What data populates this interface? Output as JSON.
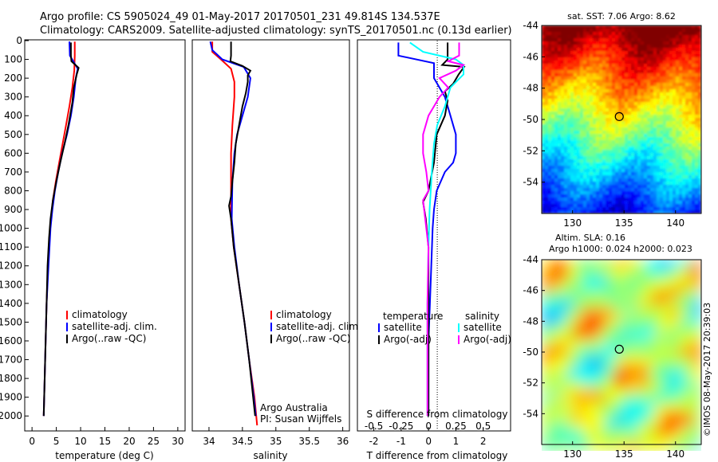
{
  "header": {
    "line1": "Argo profile: CS 5905024_49 01-May-2017 20170501_231 49.814S 134.537E",
    "line2": "Climatology: CARS2009. Satellite-adjusted climatology: synTS_20170501.nc (0.13d earlier)"
  },
  "colors": {
    "climatology": "#ff0000",
    "satellite": "#0000ff",
    "argo": "#000000",
    "s_satellite": "#00ffff",
    "s_argo": "#ff00ff"
  },
  "chart_data": [
    {
      "type": "line",
      "id": "temperature-profile",
      "xlabel": "temperature (deg C)",
      "xlim": [
        -1.5,
        31.5
      ],
      "xticks": [
        0,
        5,
        10,
        15,
        20,
        25,
        30
      ],
      "ylim": [
        0,
        2050
      ],
      "yticks": [
        0,
        100,
        200,
        300,
        400,
        500,
        600,
        700,
        800,
        900,
        1000,
        1100,
        1200,
        1300,
        1400,
        1500,
        1600,
        1700,
        1800,
        1900,
        2000
      ],
      "y_reversed": true,
      "legend": [
        "climatology",
        "satellite-adj. clim.",
        "Argo(..raw -QC)"
      ],
      "series": [
        {
          "name": "climatology",
          "color_key": "climatology",
          "points": [
            [
              8.8,
              5
            ],
            [
              8.8,
              80
            ],
            [
              8.7,
              160
            ],
            [
              8.3,
              250
            ],
            [
              7.7,
              350
            ],
            [
              7.0,
              450
            ],
            [
              6.3,
              550
            ],
            [
              5.6,
              650
            ],
            [
              4.9,
              750
            ],
            [
              4.3,
              850
            ],
            [
              3.9,
              950
            ],
            [
              3.6,
              1050
            ],
            [
              3.3,
              1200
            ],
            [
              3.0,
              1400
            ],
            [
              2.8,
              1600
            ],
            [
              2.6,
              1800
            ],
            [
              2.4,
              2000
            ]
          ]
        },
        {
          "name": "satellite-adj. clim.",
          "color_key": "satellite",
          "points": [
            [
              7.7,
              5
            ],
            [
              7.8,
              80
            ],
            [
              9.4,
              150
            ],
            [
              9.0,
              200
            ],
            [
              8.6,
              300
            ],
            [
              8.0,
              400
            ],
            [
              7.2,
              500
            ],
            [
              6.2,
              600
            ],
            [
              5.4,
              700
            ],
            [
              4.7,
              800
            ],
            [
              4.2,
              900
            ],
            [
              3.8,
              1000
            ],
            [
              3.4,
              1200
            ],
            [
              3.0,
              1400
            ],
            [
              2.8,
              1600
            ],
            [
              2.6,
              1800
            ],
            [
              2.4,
              2000
            ]
          ]
        },
        {
          "name": "Argo(..raw -QC)",
          "color_key": "argo",
          "points": [
            [
              8.0,
              10
            ],
            [
              8.0,
              80
            ],
            [
              8.1,
              110
            ],
            [
              9.6,
              145
            ],
            [
              9.2,
              180
            ],
            [
              8.6,
              250
            ],
            [
              8.3,
              330
            ],
            [
              8.1,
              360
            ],
            [
              7.5,
              450
            ],
            [
              6.7,
              550
            ],
            [
              5.8,
              650
            ],
            [
              5.0,
              750
            ],
            [
              4.3,
              850
            ],
            [
              3.8,
              950
            ],
            [
              3.5,
              1050
            ],
            [
              3.2,
              1200
            ],
            [
              3.0,
              1400
            ],
            [
              2.8,
              1600
            ],
            [
              2.6,
              1800
            ],
            [
              2.4,
              2000
            ]
          ]
        }
      ]
    },
    {
      "type": "line",
      "id": "salinity-profile",
      "xlabel": "salinity",
      "xlim": [
        33.75,
        36.1
      ],
      "xticks": [
        34,
        34.5,
        35,
        35.5,
        36
      ],
      "ylim": [
        0,
        2050
      ],
      "y_reversed": true,
      "legend": [
        "climatology",
        "satellite-adj. clim.",
        "Argo(..raw -QC)"
      ],
      "annotation": [
        "Argo Australia",
        "PI: Susan Wijffels"
      ],
      "series": [
        {
          "name": "climatology",
          "color_key": "climatology",
          "points": [
            [
              34.05,
              5
            ],
            [
              34.05,
              60
            ],
            [
              34.18,
              100
            ],
            [
              34.33,
              150
            ],
            [
              34.38,
              220
            ],
            [
              34.38,
              300
            ],
            [
              34.35,
              450
            ],
            [
              34.33,
              600
            ],
            [
              34.33,
              800
            ],
            [
              34.33,
              950
            ],
            [
              34.37,
              1100
            ],
            [
              34.45,
              1300
            ],
            [
              34.53,
              1500
            ],
            [
              34.6,
              1700
            ],
            [
              34.68,
              1900
            ],
            [
              34.72,
              2050
            ]
          ]
        },
        {
          "name": "satellite-adj. clim.",
          "color_key": "satellite",
          "points": [
            [
              34.02,
              5
            ],
            [
              34.05,
              50
            ],
            [
              34.2,
              100
            ],
            [
              34.52,
              140
            ],
            [
              34.62,
              200
            ],
            [
              34.58,
              300
            ],
            [
              34.5,
              400
            ],
            [
              34.42,
              500
            ],
            [
              34.38,
              600
            ],
            [
              34.35,
              750
            ],
            [
              34.34,
              950
            ],
            [
              34.38,
              1100
            ],
            [
              34.45,
              1300
            ],
            [
              34.53,
              1500
            ],
            [
              34.6,
              1700
            ],
            [
              34.67,
              1900
            ],
            [
              34.7,
              2000
            ]
          ]
        },
        {
          "name": "Argo(..raw -QC)",
          "color_key": "argo",
          "points": [
            [
              34.33,
              5
            ],
            [
              34.33,
              80
            ],
            [
              34.32,
              110
            ],
            [
              34.5,
              135
            ],
            [
              34.62,
              160
            ],
            [
              34.58,
              185
            ],
            [
              34.58,
              220
            ],
            [
              34.55,
              280
            ],
            [
              34.5,
              350
            ],
            [
              34.45,
              450
            ],
            [
              34.4,
              550
            ],
            [
              34.38,
              650
            ],
            [
              34.35,
              750
            ],
            [
              34.33,
              830
            ],
            [
              34.3,
              880
            ],
            [
              34.33,
              950
            ],
            [
              34.37,
              1100
            ],
            [
              34.45,
              1300
            ],
            [
              34.53,
              1500
            ],
            [
              34.6,
              1700
            ],
            [
              34.66,
              1900
            ],
            [
              34.69,
              2000
            ]
          ]
        }
      ]
    },
    {
      "type": "line",
      "id": "difference-profile",
      "xlabel": "T difference from climatology",
      "top_label": "S difference from climatology",
      "xlim": [
        -2.6,
        3.0
      ],
      "xticks": [
        -2,
        -1,
        0,
        1,
        2
      ],
      "s_ticks": [
        -0.5,
        -0.25,
        0,
        0.25,
        0.5
      ],
      "s_tick_labels": [
        "-0.5",
        "-0.25",
        "0",
        "0.25",
        "0.5"
      ],
      "s_scale": 4,
      "ylim": [
        0,
        2050
      ],
      "y_reversed": true,
      "legend_groups": [
        {
          "title": "temperature",
          "items": [
            "satellite",
            "Argo(-adj)"
          ]
        },
        {
          "title": "salinity",
          "items": [
            "satellite",
            "Argo(-adj)"
          ]
        }
      ],
      "series": [
        {
          "name": "satellite",
          "group": "temperature",
          "color_key": "satellite",
          "points": [
            [
              -1.1,
              10
            ],
            [
              -1.1,
              80
            ],
            [
              0.2,
              120
            ],
            [
              0.2,
              200
            ],
            [
              0.6,
              300
            ],
            [
              0.8,
              400
            ],
            [
              1.0,
              500
            ],
            [
              1.0,
              600
            ],
            [
              0.9,
              650
            ],
            [
              0.6,
              700
            ],
            [
              0.3,
              800
            ],
            [
              0.2,
              900
            ],
            [
              0.15,
              1000
            ],
            [
              0.1,
              1200
            ],
            [
              0.05,
              1400
            ],
            [
              0.0,
              1600
            ],
            [
              0.0,
              1800
            ],
            [
              0.0,
              2000
            ]
          ]
        },
        {
          "name": "Argo(-adj)",
          "group": "temperature",
          "color_key": "argo",
          "points": [
            [
              0.7,
              10
            ],
            [
              0.7,
              100
            ],
            [
              0.5,
              130
            ],
            [
              1.3,
              140
            ],
            [
              1.1,
              180
            ],
            [
              0.9,
              230
            ],
            [
              0.6,
              270
            ],
            [
              0.7,
              320
            ],
            [
              0.6,
              400
            ],
            [
              0.3,
              500
            ],
            [
              0.2,
              650
            ],
            [
              0.0,
              800
            ],
            [
              -0.2,
              860
            ],
            [
              -0.1,
              950
            ],
            [
              0.0,
              1100
            ],
            [
              0.0,
              1300
            ],
            [
              0.0,
              1600
            ],
            [
              0.0,
              2000
            ]
          ]
        },
        {
          "name": "satellite",
          "group": "salinity",
          "color_key": "s_satellite",
          "points": [
            [
              -0.17,
              10
            ],
            [
              -0.05,
              60
            ],
            [
              0.25,
              100
            ],
            [
              0.32,
              130
            ],
            [
              0.32,
              180
            ],
            [
              0.2,
              250
            ],
            [
              0.15,
              350
            ],
            [
              0.08,
              450
            ],
            [
              0.05,
              550
            ],
            [
              0.03,
              700
            ],
            [
              0.01,
              900
            ],
            [
              0.0,
              1100
            ],
            [
              -0.01,
              1400
            ],
            [
              -0.01,
              1700
            ],
            [
              -0.01,
              2000
            ]
          ]
        },
        {
          "name": "Argo(-adj)",
          "group": "salinity",
          "color_key": "s_argo",
          "points": [
            [
              0.28,
              10
            ],
            [
              0.28,
              80
            ],
            [
              0.18,
              110
            ],
            [
              0.32,
              130
            ],
            [
              0.25,
              160
            ],
            [
              0.1,
              200
            ],
            [
              0.18,
              250
            ],
            [
              0.1,
              300
            ],
            [
              0.05,
              350
            ],
            [
              0.0,
              400
            ],
            [
              -0.05,
              500
            ],
            [
              -0.05,
              600
            ],
            [
              -0.02,
              700
            ],
            [
              0.0,
              800
            ],
            [
              -0.05,
              850
            ],
            [
              -0.03,
              950
            ],
            [
              0.0,
              1100
            ],
            [
              -0.01,
              1400
            ],
            [
              -0.01,
              1700
            ],
            [
              -0.01,
              2000
            ]
          ]
        }
      ]
    },
    {
      "type": "heatmap",
      "id": "sst-map",
      "title": "sat. SST: 7.06  Argo: 8.62",
      "xlim": [
        127,
        142.5
      ],
      "ylim": [
        -56,
        -44
      ],
      "xticks": [
        130,
        135,
        140
      ],
      "yticks": [
        -44,
        -46,
        -48,
        -50,
        -52,
        -54
      ],
      "marker": {
        "lon": 134.537,
        "lat": -49.814
      },
      "colormap": "jet"
    },
    {
      "type": "heatmap",
      "id": "sla-map",
      "title_lines": [
        "Altim. SLA: 0.16",
        "Argo h1000: 0.024  h2000: 0.023"
      ],
      "xlim": [
        127,
        142.5
      ],
      "ylim": [
        -56,
        -44
      ],
      "xticks": [
        130,
        135,
        140
      ],
      "yticks": [
        -44,
        -46,
        -48,
        -50,
        -52,
        -54
      ],
      "marker": {
        "lon": 134.537,
        "lat": -49.814
      },
      "colormap": "jet"
    }
  ],
  "footer": {
    "credit": "©IMOS 08-May-2017 20:39:03"
  }
}
